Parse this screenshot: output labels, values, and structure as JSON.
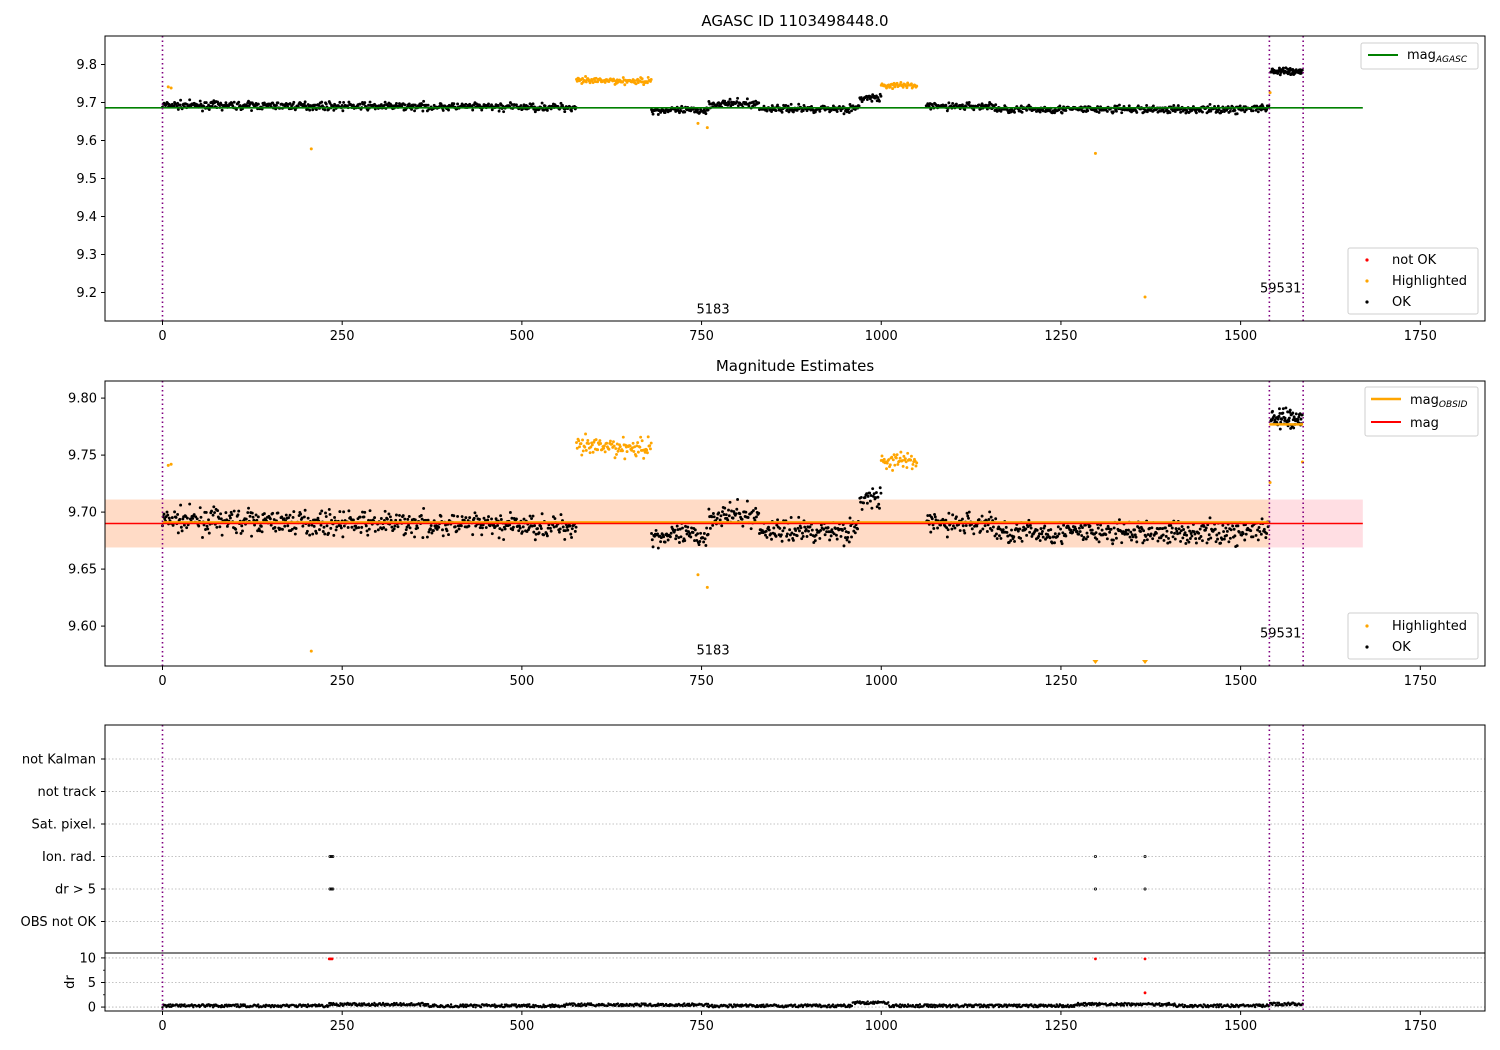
{
  "chart_data": [
    {
      "type": "scatter",
      "title": "AGASC ID 1103498448.0",
      "xlim": [
        -80,
        1840
      ],
      "ylim": [
        9.125,
        9.875
      ],
      "xticks": [
        0,
        250,
        500,
        750,
        1000,
        1250,
        1500,
        1750
      ],
      "yticks": [
        9.2,
        9.3,
        9.4,
        9.5,
        9.6,
        9.7,
        9.8
      ],
      "ytick_decimals": 1,
      "vlines": [
        0,
        1540,
        1587
      ],
      "vline_color": "#800080",
      "annotations": [
        {
          "text": "5183",
          "x": 768,
          "y": 9.145
        },
        {
          "text": "59531",
          "x": 1552,
          "y": 9.2
        }
      ],
      "baseline": {
        "name": "mag_AGASC",
        "value": 9.686,
        "x": [
          -80,
          1670
        ],
        "color": "#008000"
      },
      "legend_top": {
        "position": "top-right",
        "entries": [
          {
            "label": "mag",
            "sub": "AGASC",
            "color": "#008000"
          }
        ]
      },
      "legend_bottom": {
        "position": "bottom-right",
        "entries": [
          {
            "label": "not OK",
            "color": "#ff0000"
          },
          {
            "label": "Highlighted",
            "color": "#ffa500"
          },
          {
            "label": "OK",
            "color": "#000000"
          }
        ]
      },
      "outliers": [
        {
          "x": 207,
          "y": 9.578,
          "color": "#ffa500"
        },
        {
          "x": 745,
          "y": 9.645,
          "color": "#ffa500"
        },
        {
          "x": 758,
          "y": 9.634,
          "color": "#ffa500"
        },
        {
          "x": 1298,
          "y": 9.566,
          "color": "#ffa500"
        },
        {
          "x": 1367,
          "y": 9.188,
          "color": "#ffa500"
        },
        {
          "x": 8,
          "y": 9.741,
          "color": "#ffa500"
        },
        {
          "x": 12,
          "y": 9.738,
          "color": "#ffa500"
        },
        {
          "x": 1541,
          "y": 9.726,
          "color": "#ffa500"
        }
      ]
    },
    {
      "type": "scatter",
      "title": "Magnitude Estimates",
      "xlim": [
        -80,
        1840
      ],
      "ylim": [
        9.565,
        9.815
      ],
      "xticks": [
        0,
        250,
        500,
        750,
        1000,
        1250,
        1500,
        1750
      ],
      "yticks": [
        9.6,
        9.65,
        9.7,
        9.75,
        9.8
      ],
      "ytick_decimals": 2,
      "vlines": [
        0,
        1540,
        1587
      ],
      "vline_color": "#800080",
      "annotations": [
        {
          "text": "5183",
          "x": 768,
          "y": 9.575
        },
        {
          "text": "59531",
          "x": 1552,
          "y": 9.59
        }
      ],
      "band": {
        "name": "mag",
        "center": 9.69,
        "low": 9.669,
        "high": 9.711,
        "x": [
          -80,
          1670
        ],
        "color": "#ffb6c1"
      },
      "obs_band": {
        "x": [
          -80,
          1540
        ],
        "low": 9.669,
        "high": 9.711,
        "color": "#ffdab9"
      },
      "mag_line": {
        "name": "mag",
        "value": 9.69,
        "x": [
          -80,
          1670
        ],
        "color": "#ff0000"
      },
      "obsid_mags": [
        {
          "x0": 0,
          "x1": 1540,
          "value": 9.691
        },
        {
          "x0": 1540,
          "x1": 1587,
          "value": 9.777
        }
      ],
      "legend_top": {
        "position": "top-right",
        "entries": [
          {
            "label": "mag",
            "sub": "OBSID",
            "color": "#ffa500"
          },
          {
            "label": "mag",
            "sub": "",
            "color": "#ff0000"
          }
        ]
      },
      "legend_bottom": {
        "position": "bottom-right",
        "entries": [
          {
            "label": "Highlighted",
            "color": "#ffa500"
          },
          {
            "label": "OK",
            "color": "#000000"
          }
        ]
      },
      "outliers": [
        {
          "x": 207,
          "y": 9.578,
          "color": "#ffa500"
        },
        {
          "x": 745,
          "y": 9.645,
          "color": "#ffa500"
        },
        {
          "x": 758,
          "y": 9.634,
          "color": "#ffa500"
        },
        {
          "x": 8,
          "y": 9.741,
          "color": "#ffa500"
        },
        {
          "x": 12,
          "y": 9.742,
          "color": "#ffa500"
        },
        {
          "x": 1541,
          "y": 9.726,
          "color": "#ffa500"
        },
        {
          "x": 1586,
          "y": 9.744,
          "color": "#ffa500"
        }
      ],
      "clipped_markers": [
        {
          "x": 1298,
          "color": "#ffa500"
        },
        {
          "x": 1367,
          "color": "#ffa500"
        }
      ]
    },
    {
      "type": "scatter",
      "title": "",
      "flag_rows": [
        "not Kalman",
        "not track",
        "Sat. pixel.",
        "Ion. rad.",
        "dr > 5",
        "OBS not OK"
      ],
      "xlim": [
        -80,
        1840
      ],
      "xticks": [
        0,
        250,
        500,
        750,
        1000,
        1250,
        1500,
        1750
      ],
      "vlines": [
        0,
        1540,
        1587
      ],
      "vline_color": "#800080",
      "flag_points": [
        {
          "row": "Ion. rad.",
          "x": [
            233,
            235,
            237,
            1298,
            1367
          ]
        },
        {
          "row": "dr > 5",
          "x": [
            233,
            235,
            237,
            1298,
            1367
          ]
        }
      ],
      "dr": {
        "ylabel": "dr",
        "ylim": [
          -0.8,
          11
        ],
        "yticks": [
          0,
          5,
          10
        ],
        "red_points": [
          {
            "x": 232,
            "y": 9.8
          },
          {
            "x": 234,
            "y": 9.8
          },
          {
            "x": 236,
            "y": 9.8
          },
          {
            "x": 1298,
            "y": 9.8
          },
          {
            "x": 1367,
            "y": 9.8
          },
          {
            "x": 1367,
            "y": 2.9
          }
        ]
      }
    }
  ]
}
